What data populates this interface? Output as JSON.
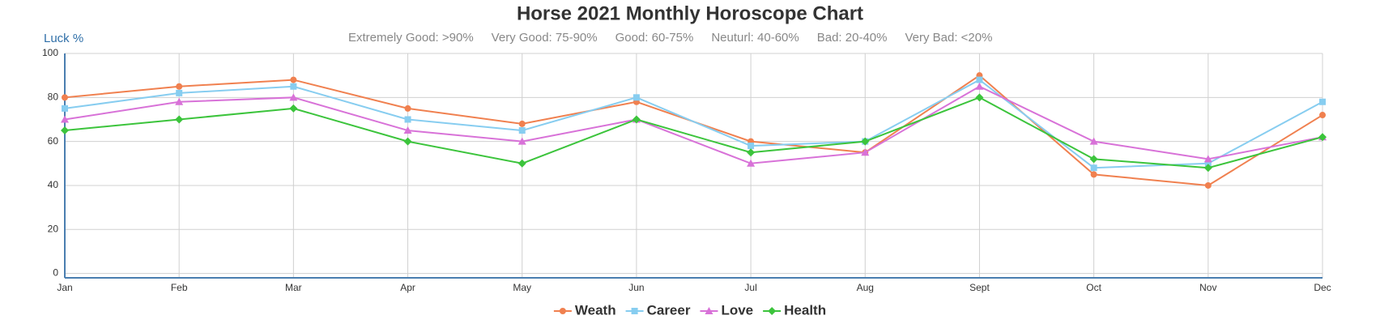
{
  "chart_data": {
    "type": "line",
    "title": "Horse 2021 Monthly Horoscope Chart",
    "notes": [
      "Extremely Good: >90%",
      "Very Good: 75-90%",
      "Good: 60-75%",
      "Neuturl: 40-60%",
      "Bad: 20-40%",
      "Very Bad: <20%"
    ],
    "y_label": "Luck %",
    "categories": [
      "Jan",
      "Feb",
      "Mar",
      "Apr",
      "May",
      "Jun",
      "Jul",
      "Aug",
      "Sept",
      "Oct",
      "Nov",
      "Dec"
    ],
    "series": [
      {
        "name": "Weath",
        "color": "#f0804f",
        "marker": "circle",
        "values": [
          80,
          85,
          88,
          75,
          68,
          78,
          60,
          55,
          90,
          45,
          40,
          72
        ]
      },
      {
        "name": "Career",
        "color": "#87cdf0",
        "marker": "square",
        "values": [
          75,
          82,
          85,
          70,
          65,
          80,
          58,
          60,
          88,
          48,
          50,
          78
        ]
      },
      {
        "name": "Love",
        "color": "#d872d8",
        "marker": "triangle",
        "values": [
          70,
          78,
          80,
          65,
          60,
          70,
          50,
          55,
          85,
          60,
          52,
          62
        ]
      },
      {
        "name": "Health",
        "color": "#3cc43c",
        "marker": "diamond",
        "values": [
          65,
          70,
          75,
          60,
          50,
          70,
          55,
          60,
          80,
          52,
          48,
          62
        ]
      }
    ],
    "ylim": [
      -2,
      100
    ],
    "yticks": [
      0,
      20,
      40,
      60,
      80,
      100
    ],
    "grid": true
  }
}
